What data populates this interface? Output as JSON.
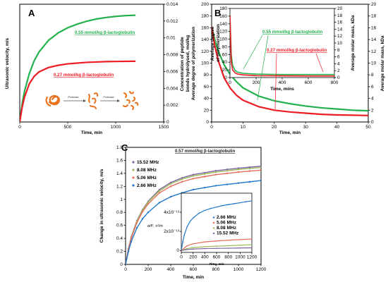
{
  "chart_data": [
    {
      "panel_label": "A",
      "type": "line",
      "xlabel": "Time, min",
      "ylabel": "Ultrasonic velocity, m/s",
      "y2label": "Concentration of peptide bonds hydrolysed, mol/kg",
      "xlim": [
        0,
        1500
      ],
      "ylim": [
        0,
        1.6
      ],
      "y2lim": [
        0,
        0.014
      ],
      "xticks": [
        "0",
        "500",
        "1000",
        "1500"
      ],
      "yticks": [],
      "y2ticks": [
        "0",
        "0.002",
        "0.004",
        "0.006",
        "0.008",
        "0.01",
        "0.012",
        "0.014"
      ],
      "series": [
        {
          "name": "0.55 mmol/kg β-lactoglobulin",
          "color": "#22b14c",
          "x": [
            0,
            25,
            50,
            100,
            150,
            200,
            300,
            400,
            500,
            600,
            700,
            800,
            900,
            1000,
            1100,
            1200
          ],
          "y": [
            0,
            0.25,
            0.42,
            0.66,
            0.83,
            0.95,
            1.11,
            1.21,
            1.28,
            1.33,
            1.37,
            1.4,
            1.42,
            1.435,
            1.445,
            1.45
          ]
        },
        {
          "name": "0.27 mmol/kg β-lactoglobulin",
          "color": "#ed1c24",
          "x": [
            0,
            25,
            50,
            100,
            150,
            200,
            300,
            400,
            500,
            600,
            700,
            800,
            900,
            1000,
            1100,
            1200
          ],
          "y": [
            0,
            0.2,
            0.34,
            0.52,
            0.62,
            0.68,
            0.74,
            0.77,
            0.79,
            0.8,
            0.81,
            0.815,
            0.82,
            0.822,
            0.824,
            0.825
          ]
        }
      ],
      "annotations": [
        "Protease",
        "Protease"
      ]
    },
    {
      "panel_label": "B",
      "type": "line",
      "xlabel": "Time, min",
      "ylabel": "Average degree of polymerization",
      "y2label": "Average molar mass, kDa",
      "xlim": [
        0,
        50
      ],
      "ylim": [
        0,
        200
      ],
      "y2lim": [
        0,
        20
      ],
      "xticks": [
        "0",
        "10",
        "20",
        "30",
        "40",
        "50"
      ],
      "yticks": [
        "0",
        "20",
        "40",
        "60",
        "80",
        "100",
        "120",
        "140",
        "160",
        "180",
        "200"
      ],
      "y2ticks": [
        "0",
        "2",
        "4",
        "6",
        "8",
        "10",
        "12",
        "14",
        "16",
        "18",
        "20"
      ],
      "series": [
        {
          "name": "0.55 mmol/kg β-lactoglobulin",
          "color": "#22b14c",
          "x": [
            0,
            1,
            2,
            4,
            6,
            8,
            10,
            15,
            20,
            25,
            30,
            35,
            40,
            45,
            50
          ],
          "y": [
            162,
            140,
            122,
            97,
            80,
            68,
            58,
            44,
            36,
            31,
            27,
            24,
            22,
            20,
            19
          ]
        },
        {
          "name": "0.27 mmol/kg β-lactoglobulin",
          "color": "#ed1c24",
          "x": [
            0,
            1,
            2,
            4,
            6,
            8,
            10,
            15,
            20,
            25,
            30,
            35,
            40,
            45,
            50
          ],
          "y": [
            162,
            130,
            106,
            75,
            57,
            45,
            37,
            26,
            20,
            17,
            15,
            13,
            12,
            11.5,
            11
          ]
        }
      ],
      "inset": {
        "xlabel": "Time, mins",
        "ylabel": "Average degree of polymerization",
        "y2label": "Average molar mass, kDa",
        "xlim": [
          0,
          800
        ],
        "ylim": [
          0,
          180
        ],
        "y2lim": [
          0,
          20
        ],
        "xticks": [
          "0",
          "200",
          "400",
          "600",
          "800"
        ],
        "yticks": [
          "0",
          "20",
          "40",
          "60",
          "80",
          "100",
          "120",
          "140",
          "160",
          "180"
        ],
        "y2ticks": [
          "0",
          "2",
          "4",
          "6",
          "8",
          "10",
          "12",
          "14",
          "16",
          "18",
          "20"
        ],
        "series": [
          {
            "name": "0.55 mmol/kg β-lactoglobulin",
            "color": "#22b14c",
            "x": [
              0,
              10,
              20,
              40,
              60,
              100,
              200,
              400,
              600,
              800
            ],
            "y": [
              162,
              60,
              32,
              18,
              14,
              11,
              9,
              8,
              8,
              8
            ]
          },
          {
            "name": "0.27 mmol/kg β-lactoglobulin",
            "color": "#ed1c24",
            "x": [
              0,
              10,
              20,
              40,
              60,
              100,
              200,
              400,
              600,
              800
            ],
            "y": [
              162,
              40,
              20,
              12,
              9,
              7,
              5,
              4.5,
              4,
              4
            ]
          }
        ]
      }
    },
    {
      "panel_label": "C",
      "type": "line",
      "title": "0.57 mmol/kg β-lactoglobulin",
      "xlabel": "Time, min",
      "ylabel": "Change in ultrasonic velocity, m/s",
      "xlim": [
        0,
        1200
      ],
      "ylim": [
        0,
        1.8
      ],
      "xticks": [
        "0",
        "200",
        "400",
        "600",
        "800",
        "1000",
        "1200"
      ],
      "yticks": [
        "0",
        "0.2",
        "0.4",
        "0.6",
        "0.8",
        "1",
        "1.2",
        "1.4",
        "1.6",
        "1.8"
      ],
      "series": [
        {
          "name": "15.52 MHz",
          "color": "#8064a2",
          "x": [
            0,
            25,
            50,
            100,
            150,
            200,
            300,
            400,
            500,
            600,
            700,
            800,
            900,
            1000,
            1100,
            1200
          ],
          "y": [
            0,
            0.24,
            0.42,
            0.67,
            0.84,
            0.97,
            1.15,
            1.26,
            1.33,
            1.38,
            1.41,
            1.44,
            1.46,
            1.48,
            1.495,
            1.51
          ]
        },
        {
          "name": "8.08 MHz",
          "color": "#9bbb59",
          "x": [
            0,
            25,
            50,
            100,
            150,
            200,
            300,
            400,
            500,
            600,
            700,
            800,
            900,
            1000,
            1100,
            1200
          ],
          "y": [
            0,
            0.235,
            0.41,
            0.66,
            0.83,
            0.96,
            1.13,
            1.24,
            1.31,
            1.36,
            1.39,
            1.42,
            1.44,
            1.46,
            1.475,
            1.49
          ]
        },
        {
          "name": "5.06 MHz",
          "color": "#e46c5a",
          "x": [
            0,
            25,
            50,
            100,
            150,
            200,
            300,
            400,
            500,
            600,
            700,
            800,
            900,
            1000,
            1100,
            1200
          ],
          "y": [
            0,
            0.23,
            0.4,
            0.64,
            0.81,
            0.93,
            1.1,
            1.2,
            1.27,
            1.32,
            1.35,
            1.38,
            1.4,
            1.42,
            1.435,
            1.45
          ]
        },
        {
          "name": "2.66 MHz",
          "color": "#1f77c9",
          "x": [
            0,
            25,
            50,
            100,
            150,
            200,
            300,
            400,
            500,
            600,
            700,
            800,
            900,
            1000,
            1100,
            1200
          ],
          "y": [
            0,
            0.2,
            0.35,
            0.56,
            0.7,
            0.8,
            0.95,
            1.04,
            1.1,
            1.15,
            1.18,
            1.21,
            1.23,
            1.25,
            1.27,
            1.29
          ]
        }
      ],
      "inset": {
        "xlabel": "Time, min",
        "ylabel": "α/f², s²/m",
        "xlim": [
          0,
          1200
        ],
        "ylim": [
          -2e-14,
          6e-13
        ],
        "xticks": [
          "0",
          "200",
          "400",
          "600",
          "800",
          "1000",
          "1200"
        ],
        "yticks": [
          "0",
          "2x10⁻¹³",
          "4x10⁻¹³"
        ],
        "series": [
          {
            "name": "2.66 MHz",
            "color": "#1f77c9",
            "x": [
              0,
              25,
              50,
              100,
              150,
              200,
              300,
              400,
              500,
              600,
              700,
              800,
              900,
              1000,
              1100,
              1200
            ],
            "y": [
              0,
              9e-14,
              1.6e-13,
              2.5e-13,
              3.05e-13,
              3.4e-13,
              3.9e-13,
              4.2e-13,
              4.4e-13,
              4.55e-13,
              4.7e-13,
              4.8e-13,
              4.9e-13,
              5e-13,
              5.1e-13,
              5.2e-13
            ]
          },
          {
            "name": "5.06 MHz",
            "color": "#e46c5a",
            "x": [
              0,
              100,
              200,
              400,
              600,
              800,
              1000,
              1200
            ],
            "y": [
              0,
              5e-14,
              7e-14,
              9e-14,
              1e-13,
              1.08e-13,
              1.14e-13,
              1.2e-13
            ]
          },
          {
            "name": "8.08 MHz",
            "color": "#9bbb59",
            "x": [
              0,
              100,
              200,
              400,
              600,
              800,
              1000,
              1200
            ],
            "y": [
              0,
              2e-14,
              3e-14,
              4e-14,
              4.5e-14,
              5e-14,
              5.5e-14,
              6e-14
            ]
          },
          {
            "name": "15.52 MHz",
            "color": "#8064a2",
            "x": [
              0,
              100,
              200,
              400,
              600,
              800,
              1000,
              1200
            ],
            "y": [
              0,
              1e-14,
              1.5e-14,
              2e-14,
              2.2e-14,
              2.4e-14,
              2.6e-14,
              2.8e-14
            ]
          }
        ]
      }
    }
  ]
}
